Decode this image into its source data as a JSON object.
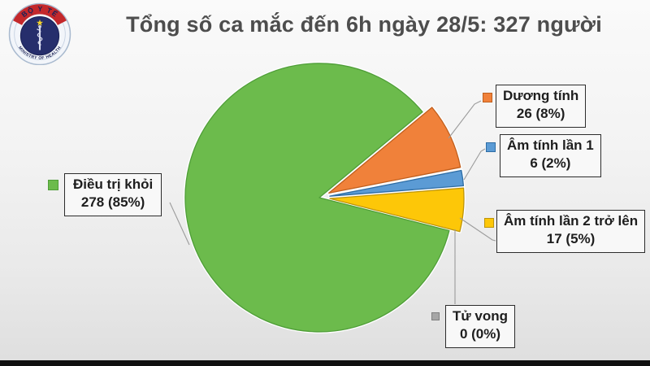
{
  "logo": {
    "top_text": "BỘ Y TẾ",
    "bottom_text": "MINISTRY OF HEALTH"
  },
  "title": "Tổng số ca mắc đến 6h ngày 28/5: 327 người",
  "chart_data": {
    "type": "pie",
    "title": "Tổng số ca mắc đến 6h ngày 28/5: 327 người",
    "total": 327,
    "start_angle_deg": -39.7,
    "legend_position": "right-and-left callouts",
    "slices": [
      {
        "label": "Dương tính",
        "value": 26,
        "pct": "8%",
        "color": "#F0813A",
        "border": "#C05F1D",
        "explode": true
      },
      {
        "label": "Âm tính lần 1",
        "value": 6,
        "pct": "2%",
        "color": "#5B9BD5",
        "border": "#2E6DA4",
        "explode": true
      },
      {
        "label": "Âm tính lần 2 trở lên",
        "value": 17,
        "pct": "5%",
        "color": "#FDC708",
        "border": "#BD940A",
        "explode": true
      },
      {
        "label": "Tử vong",
        "value": 0,
        "pct": "0%",
        "color": "#A6A6A6",
        "border": "#7F7F7F",
        "explode": true
      },
      {
        "label": "Điều trị khỏi",
        "value": 278,
        "pct": "85%",
        "color": "#6CBB4C",
        "border": "#4F9E38",
        "explode": false
      }
    ]
  },
  "legend": {
    "duong_tinh": {
      "label": "Dương tính",
      "value": "26 (8%)"
    },
    "am_tinh_1": {
      "label": "Âm tính lần 1",
      "value": "6 (2%)"
    },
    "am_tinh_2": {
      "label": "Âm tính lần 2 trở lên",
      "value": "17 (5%)"
    },
    "tu_vong": {
      "label": "Tử vong",
      "value": "0 (0%)"
    },
    "dieu_tri_khoi": {
      "label": "Điều trị khỏi",
      "value": "278 (85%)"
    }
  }
}
